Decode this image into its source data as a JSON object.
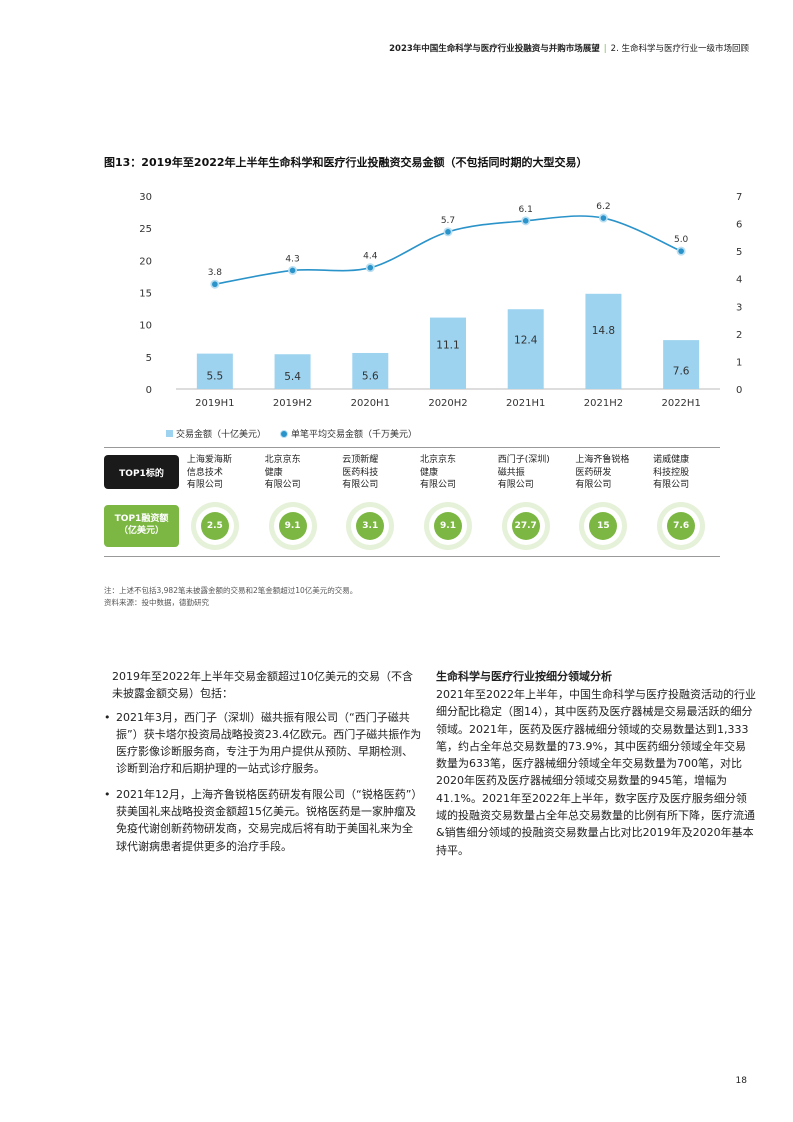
{
  "header": {
    "report_title": "2023年中国生命科学与医疗行业投融资与并购市场展望",
    "separator": "|",
    "section": "2. 生命科学与医疗行业一级市场回顾"
  },
  "figure": {
    "title": "图13：2019年至2022年上半年生命科学和医疗行业投融资交易金额（不包括同时期的大型交易）"
  },
  "chart_data": {
    "type": "bar",
    "categories": [
      "2019H1",
      "2019H2",
      "2020H1",
      "2020H2",
      "2021H1",
      "2021H2",
      "2022H1"
    ],
    "series": [
      {
        "name": "交易金额（十亿美元）",
        "type": "bar",
        "axis": "left",
        "values": [
          5.5,
          5.4,
          5.6,
          11.1,
          12.4,
          14.8,
          7.6
        ],
        "labels": [
          "5.5",
          "5.4",
          "5.6",
          "11.1",
          "12.4",
          "14.8",
          "7.6"
        ]
      },
      {
        "name": "单笔平均交易金额（千万美元）",
        "type": "line",
        "axis": "right",
        "values": [
          3.8,
          4.3,
          4.4,
          5.7,
          6.1,
          6.2,
          5.0
        ],
        "labels": [
          "3.8",
          "4.3",
          "4.4",
          "5.7",
          "6.1",
          "6.2",
          "5.0"
        ]
      }
    ],
    "y_left": {
      "ylim": [
        0,
        30
      ],
      "ticks": [
        "0",
        "5",
        "10",
        "15",
        "20",
        "25",
        "30"
      ]
    },
    "y_right": {
      "ylim": [
        0,
        7
      ],
      "ticks": [
        "0",
        "1",
        "2",
        "3",
        "4",
        "5",
        "6",
        "7"
      ]
    },
    "legend_placement": "bottom-left",
    "grid": false,
    "colors": {
      "bar": "#9dd3ef",
      "line": "#2a93c9"
    }
  },
  "top1": {
    "label_company": "TOP1标的",
    "label_amount_1": "TOP1融资额",
    "label_amount_2": "（亿美元）",
    "items": [
      {
        "lines": [
          "上海爱海斯",
          "信息技术",
          "有限公司"
        ],
        "amount": "2.5"
      },
      {
        "lines": [
          "北京京东",
          "健康",
          "有限公司"
        ],
        "amount": "9.1"
      },
      {
        "lines": [
          "云顶新耀",
          "医药科技",
          "有限公司"
        ],
        "amount": "3.1"
      },
      {
        "lines": [
          "北京京东",
          "健康",
          "有限公司"
        ],
        "amount": "9.1"
      },
      {
        "lines": [
          "西门子(深圳)",
          "磁共振",
          "有限公司"
        ],
        "amount": "27.7"
      },
      {
        "lines": [
          "上海齐鲁锐格",
          "医药研发",
          "有限公司"
        ],
        "amount": "15"
      },
      {
        "lines": [
          "诺威健康",
          "科技控股",
          "有限公司"
        ],
        "amount": "7.6"
      }
    ],
    "colors": {
      "accent": "#7cb743",
      "dark": "#1a1a1a"
    }
  },
  "notes": {
    "note": "注：上述不包括3,982笔未披露金额的交易和2笔金额超过10亿美元的交易。",
    "source": "资料来源：投中数据，德勤研究"
  },
  "left_column": {
    "intro": "2019年至2022年上半年交易金额超过10亿美元的交易（不含未披露金额交易）包括：",
    "bullets": [
      "2021年3月，西门子（深圳）磁共振有限公司（“西门子磁共振”）获卡塔尔投资局战略投资23.4亿欧元。西门子磁共振作为医疗影像诊断服务商，专注于为用户提供从预防、早期检测、诊断到治疗和后期护理的一站式诊疗服务。",
      "2021年12月，上海齐鲁锐格医药研发有限公司（“锐格医药”）获美国礼来战略投资金额超15亿美元。锐格医药是一家肿瘤及免疫代谢创新药物研发商，交易完成后将有助于美国礼来为全球代谢病患者提供更多的治疗手段。"
    ]
  },
  "right_column": {
    "heading": "生命科学与医疗行业按细分领域分析",
    "body": "2021年至2022年上半年，中国生命科学与医疗投融资活动的行业细分配比稳定（图14），其中医药及医疗器械是交易最活跃的细分领域。2021年，医药及医疗器械细分领域的交易数量达到1,333笔，约占全年总交易数量的73.9%，其中医药细分领域全年交易数量为633笔，医疗器械细分领域全年交易数量为700笔，对比2020年医药及医疗器械细分领域交易数量的945笔，增幅为41.1%。2021年至2022年上半年，数字医疗及医疗服务细分领域的投融资交易数量占全年总交易数量的比例有所下降，医疗流通&销售细分领域的投融资交易数量占比对比2019年及2020年基本持平。"
  },
  "page_number": "18"
}
